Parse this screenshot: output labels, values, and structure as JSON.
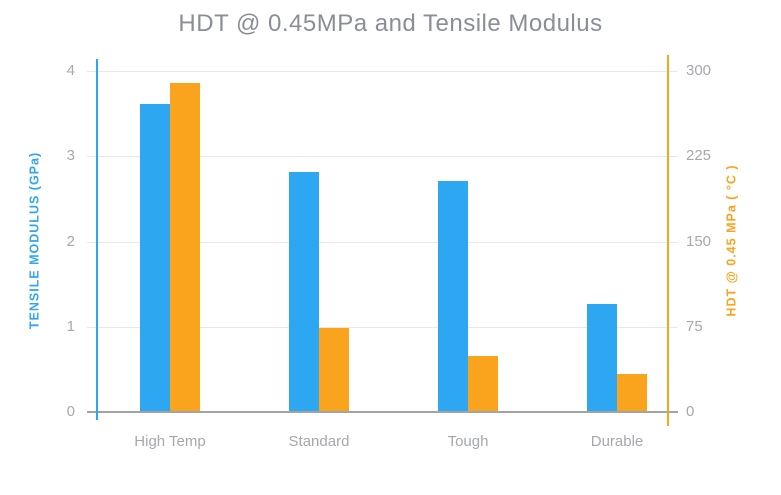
{
  "chart_data": {
    "type": "bar",
    "title": "HDT @ 0.45MPa and Tensile Modulus",
    "categories": [
      "High Temp",
      "Standard",
      "Tough",
      "Durable"
    ],
    "series": [
      {
        "name": "Tensile Modulus",
        "axis": "left",
        "color": "#2EA7F2",
        "values": [
          3.6,
          2.8,
          2.7,
          1.26
        ]
      },
      {
        "name": "HDT @ 0.45 MPa",
        "axis": "right",
        "color": "#FAA41E",
        "values": [
          289,
          73,
          48.5,
          33
        ]
      }
    ],
    "left_axis": {
      "label": "TENSILE MODULUS (GPa)",
      "ticks": [
        0,
        1,
        2,
        3,
        4
      ],
      "range": [
        0,
        4
      ],
      "color": "#2EA7F2"
    },
    "right_axis": {
      "label": "HDT @ 0.45 MPa ( °C )",
      "ticks": [
        0,
        75,
        150,
        225,
        300
      ],
      "range": [
        0,
        300
      ],
      "color": "#FAA41E"
    },
    "grid": true,
    "legend": "none",
    "background": "#FFFFFF",
    "text_colors": {
      "title": "#8B8E96",
      "ticks": "#A6A8AD",
      "gridline": "#E8E8EB",
      "baseline": "#A2A3A6"
    }
  }
}
